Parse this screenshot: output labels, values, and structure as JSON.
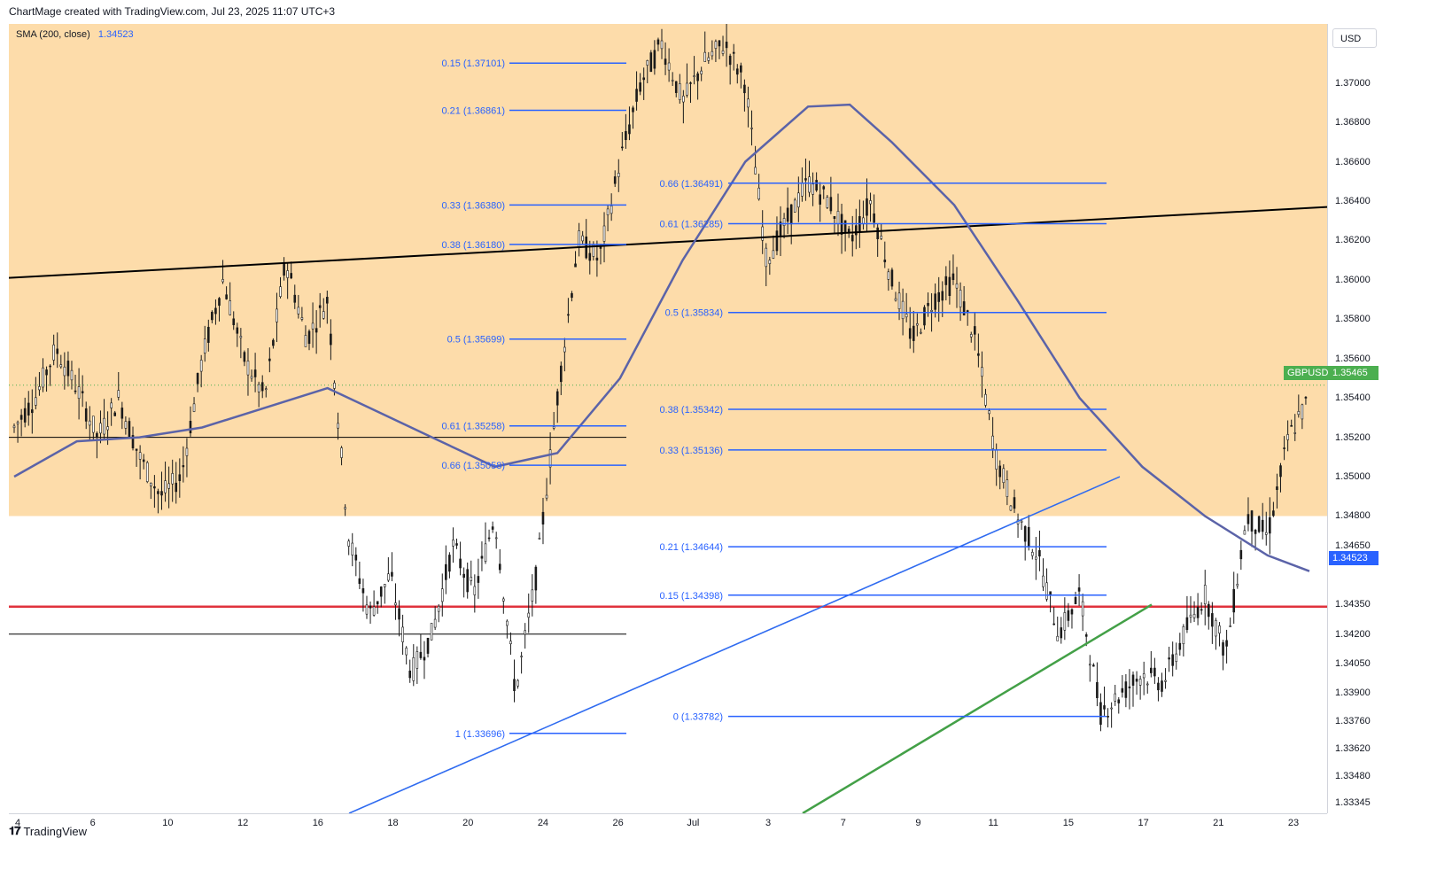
{
  "header": {
    "title": "ChartMage created with TradingView.com, Jul 23, 2025 11:07 UTC+3"
  },
  "legend": {
    "indicator": "SMA (200, close)",
    "value": "1.34523"
  },
  "axis": {
    "currency": "USD"
  },
  "footer": {
    "brand": "TradingView"
  },
  "colors": {
    "zone": "#fddcaa",
    "candles": "#1a1a1a",
    "sma": "#5b63a8",
    "fib": "#2962ff",
    "support": "#e0323c",
    "trend_black": "#000000",
    "trend_blue": "#2f6bf0",
    "trend_green": "#43a047",
    "last_price": "#4caf50",
    "sma_tag": "#2962ff"
  },
  "chart_data": {
    "type": "candlestick",
    "symbol": "GBPUSD",
    "ylim": [
      1.3329,
      1.373
    ],
    "y_ticks": [
      "1.37000",
      "1.36800",
      "1.36600",
      "1.36400",
      "1.36200",
      "1.36000",
      "1.35800",
      "1.35600",
      "1.35400",
      "1.35200",
      "1.35000",
      "1.34800",
      "1.34650",
      "1.34350",
      "1.34200",
      "1.34050",
      "1.33900",
      "1.33760",
      "1.33620",
      "1.33480",
      "1.33345"
    ],
    "x_ticks": [
      "4",
      "6",
      "10",
      "12",
      "16",
      "18",
      "20",
      "24",
      "26",
      "Jul",
      "3",
      "7",
      "9",
      "11",
      "15",
      "17",
      "21",
      "23"
    ],
    "last_price": {
      "label": "GBPUSD",
      "value": "1.35465"
    },
    "sma_last": "1.34523",
    "supply_zone": [
      1.348,
      1.373
    ],
    "horizontal_levels": [
      {
        "value": 1.3434,
        "color": "red"
      },
      {
        "value": 1.352,
        "color": "black"
      },
      {
        "value": 1.342,
        "color": "black"
      }
    ],
    "fib_sets": [
      {
        "levels": [
          {
            "label": "0.15 (1.37101)",
            "value": 1.37101
          },
          {
            "label": "0.21 (1.36861)",
            "value": 1.36861
          },
          {
            "label": "0.33 (1.36380)",
            "value": 1.3638
          },
          {
            "label": "0.38 (1.36180)",
            "value": 1.3618
          },
          {
            "label": "0.5 (1.35699)",
            "value": 1.35699
          },
          {
            "label": "0.61 (1.35258)",
            "value": 1.35258
          },
          {
            "label": "0.66 (1.35058)",
            "value": 1.35058
          },
          {
            "label": "1 (1.33696)",
            "value": 1.33696
          }
        ]
      },
      {
        "levels": [
          {
            "label": "0.66 (1.36491)",
            "value": 1.36491
          },
          {
            "label": "0.61 (1.36285)",
            "value": 1.36285
          },
          {
            "label": "0.5 (1.35834)",
            "value": 1.35834
          },
          {
            "label": "0.38 (1.35342)",
            "value": 1.35342
          },
          {
            "label": "0.33 (1.35136)",
            "value": 1.35136
          },
          {
            "label": "0.21 (1.34644)",
            "value": 1.34644
          },
          {
            "label": "0.15 (1.34398)",
            "value": 1.34398
          },
          {
            "label": "0 (1.33782)",
            "value": 1.33782
          }
        ]
      }
    ],
    "price_path": [
      [
        0,
        1.3525
      ],
      [
        1,
        1.354
      ],
      [
        2,
        1.3565
      ],
      [
        3,
        1.3545
      ],
      [
        4,
        1.352
      ],
      [
        5,
        1.354
      ],
      [
        6,
        1.351
      ],
      [
        7,
        1.349
      ],
      [
        8,
        1.35
      ],
      [
        9,
        1.356
      ],
      [
        10,
        1.36
      ],
      [
        11,
        1.356
      ],
      [
        12,
        1.354
      ],
      [
        13,
        1.361
      ],
      [
        14,
        1.357
      ],
      [
        15,
        1.359
      ],
      [
        16,
        1.347
      ],
      [
        17,
        1.343
      ],
      [
        18,
        1.345
      ],
      [
        19,
        1.34
      ],
      [
        20,
        1.342
      ],
      [
        21,
        1.3465
      ],
      [
        22,
        1.344
      ],
      [
        23,
        1.348
      ],
      [
        24,
        1.339
      ],
      [
        25,
        1.345
      ],
      [
        26,
        1.354
      ],
      [
        27,
        1.362
      ],
      [
        28,
        1.361
      ],
      [
        29,
        1.366
      ],
      [
        30,
        1.37
      ],
      [
        31,
        1.372
      ],
      [
        32,
        1.369
      ],
      [
        33,
        1.371
      ],
      [
        34,
        1.372
      ],
      [
        35,
        1.37
      ],
      [
        36,
        1.361
      ],
      [
        37,
        1.363
      ],
      [
        38,
        1.365
      ],
      [
        39,
        1.364
      ],
      [
        40,
        1.362
      ],
      [
        41,
        1.364
      ],
      [
        42,
        1.36
      ],
      [
        43,
        1.357
      ],
      [
        44,
        1.359
      ],
      [
        45,
        1.36
      ],
      [
        46,
        1.357
      ],
      [
        47,
        1.351
      ],
      [
        48,
        1.348
      ],
      [
        49,
        1.346
      ],
      [
        50,
        1.342
      ],
      [
        51,
        1.344
      ],
      [
        52,
        1.338
      ],
      [
        53,
        1.339
      ],
      [
        54,
        1.34
      ],
      [
        55,
        1.3395
      ],
      [
        56,
        1.342
      ],
      [
        57,
        1.344
      ],
      [
        58,
        1.341
      ],
      [
        59,
        1.348
      ],
      [
        60,
        1.347
      ],
      [
        61,
        1.352
      ],
      [
        62,
        1.354
      ]
    ],
    "sma_path": [
      [
        0,
        1.35
      ],
      [
        3,
        1.3518
      ],
      [
        6,
        1.352
      ],
      [
        9,
        1.3525
      ],
      [
        12,
        1.3535
      ],
      [
        15,
        1.3545
      ],
      [
        17,
        1.3535
      ],
      [
        20,
        1.352
      ],
      [
        23,
        1.3505
      ],
      [
        26,
        1.3512
      ],
      [
        29,
        1.355
      ],
      [
        32,
        1.361
      ],
      [
        35,
        1.366
      ],
      [
        38,
        1.3688
      ],
      [
        40,
        1.3689
      ],
      [
        42,
        1.367
      ],
      [
        45,
        1.3638
      ],
      [
        48,
        1.359
      ],
      [
        51,
        1.354
      ],
      [
        54,
        1.3505
      ],
      [
        57,
        1.348
      ],
      [
        60,
        1.346
      ],
      [
        62,
        1.3452
      ]
    ]
  }
}
